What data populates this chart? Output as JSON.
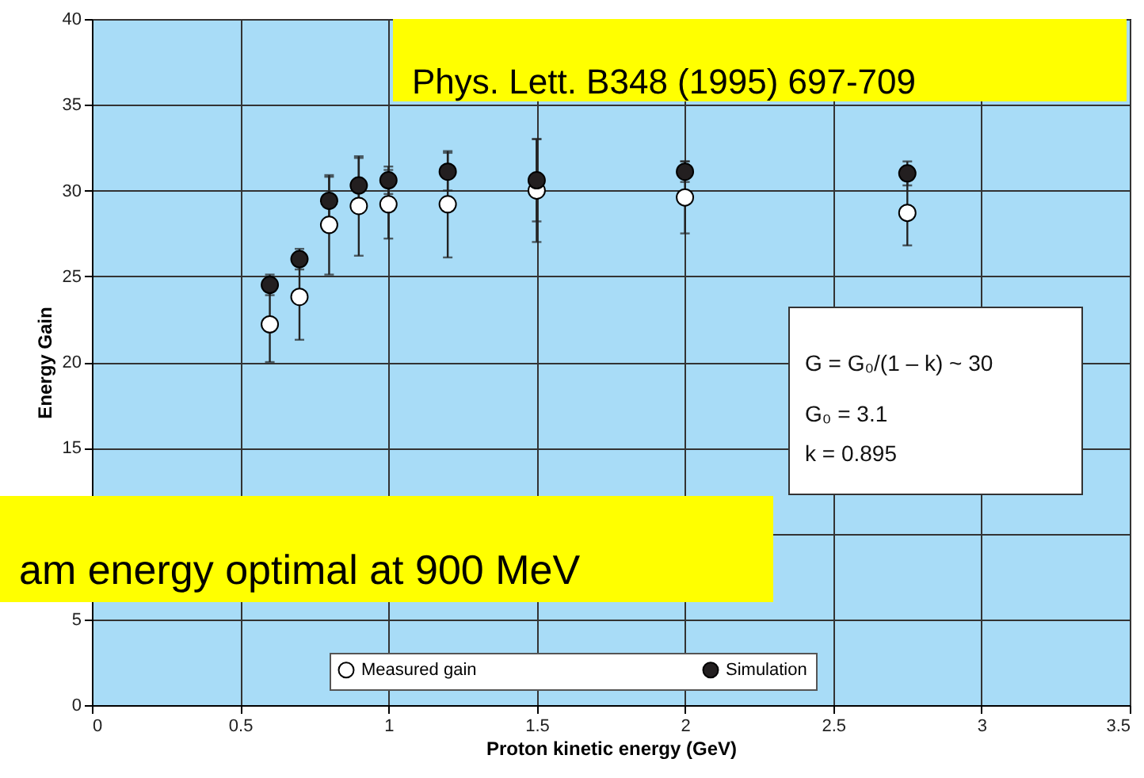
{
  "chart_data": {
    "type": "scatter",
    "xlabel": "Proton kinetic energy (GeV)",
    "ylabel": "Energy Gain",
    "x": [
      0.6,
      0.7,
      0.8,
      0.9,
      1.0,
      1.2,
      1.5,
      2.0,
      2.75
    ],
    "series": [
      {
        "name": "Measured gain",
        "color": "#ffffff",
        "values": [
          22.2,
          23.8,
          28.0,
          29.1,
          29.2,
          29.2,
          30.0,
          29.6,
          28.7
        ],
        "errors": [
          2.2,
          2.5,
          2.9,
          2.9,
          2.0,
          3.1,
          3.0,
          2.1,
          1.9
        ]
      },
      {
        "name": "Simulation",
        "color": "#231f20",
        "values": [
          24.5,
          26.0,
          29.4,
          30.3,
          30.6,
          31.1,
          30.6,
          31.1,
          31.0
        ],
        "errors": [
          0.6,
          0.6,
          1.4,
          1.6,
          0.8,
          1.1,
          2.4,
          0.6,
          0.7
        ]
      }
    ],
    "xlim": [
      0,
      3.5
    ],
    "xticks": [
      0,
      0.5,
      1,
      1.5,
      2,
      2.5,
      3,
      3.5
    ],
    "ylim": [
      0,
      40
    ],
    "yticks": [
      0,
      5,
      {
        "value": 10,
        "label": null
      },
      15,
      20,
      25,
      30,
      35,
      40
    ],
    "grid": true,
    "legend": "bottom",
    "marker": "circle",
    "annotations": [
      "Phys. Lett. B348 (1995) 697-709",
      "am energy optimal at 900 MeV",
      "G = G₀/(1 – k) ~ 30",
      "G₀ = 3.1",
      "k = 0.895"
    ]
  }
}
